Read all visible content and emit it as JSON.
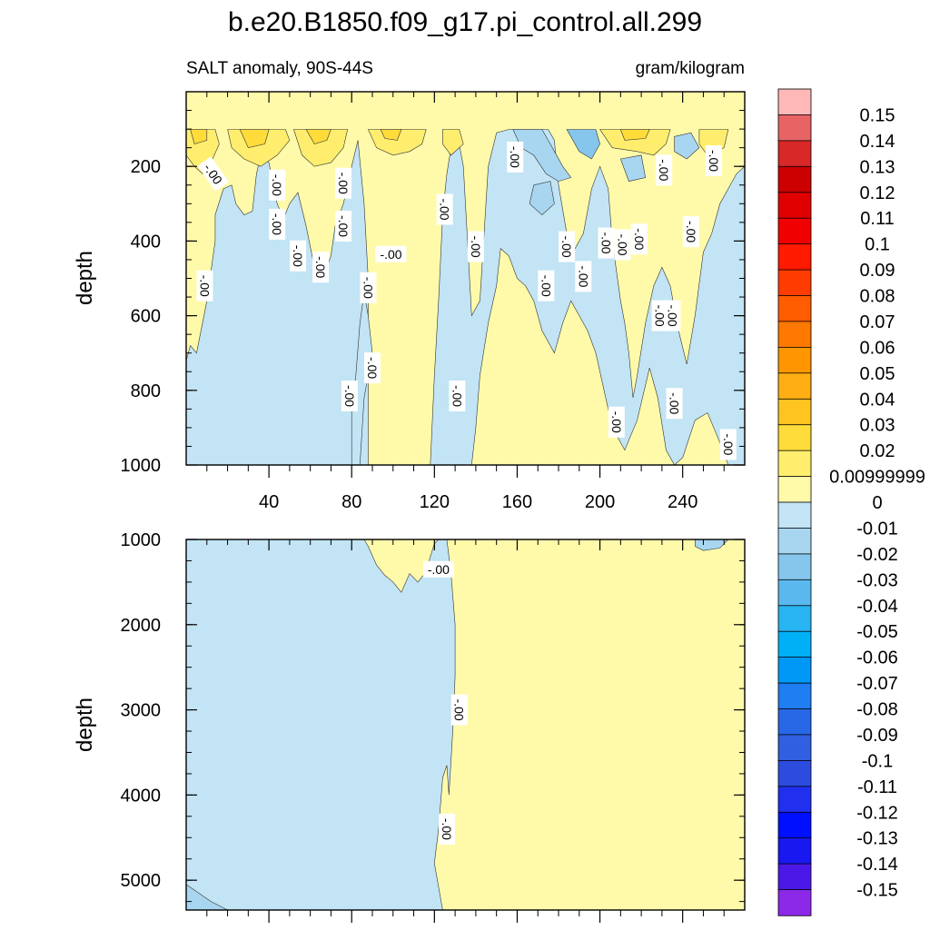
{
  "chart_data": {
    "type": "contour",
    "title": "b.e20.B1850.f09_g17.pi_control.all.299",
    "subtitle_left": "SALT anomaly, 90S-44S",
    "subtitle_right": "gram/kilogram",
    "x_ticks": [
      "40",
      "80",
      "120",
      "160",
      "200",
      "240"
    ],
    "x_tick_values": [
      40,
      80,
      120,
      160,
      200,
      240
    ],
    "xlim": [
      0,
      270
    ],
    "panels": [
      {
        "name": "upper",
        "ylabel": "depth",
        "ylim": [
          0,
          1000
        ],
        "y_ticks": [
          "200",
          "400",
          "600",
          "800",
          "1000"
        ],
        "y_tick_values": [
          200,
          400,
          600,
          800,
          1000
        ]
      },
      {
        "name": "lower",
        "ylabel": "depth",
        "ylim": [
          1000,
          5350
        ],
        "y_ticks": [
          "1000",
          "2000",
          "3000",
          "4000",
          "5000"
        ],
        "y_tick_values": [
          1000,
          2000,
          3000,
          4000,
          5000
        ]
      }
    ],
    "contour_labels_upper": [
      {
        "text": "-.00",
        "x": 13,
        "y": 220,
        "rot": 55
      },
      {
        "text": "-.00",
        "x": 9,
        "y": 520,
        "rot": 90
      },
      {
        "text": "-.00",
        "x": 44,
        "y": 355,
        "rot": 90
      },
      {
        "text": "-.00",
        "x": 44,
        "y": 250,
        "rot": 90
      },
      {
        "text": "-.00",
        "x": 54,
        "y": 440,
        "rot": 90
      },
      {
        "text": "-.00",
        "x": 65,
        "y": 470,
        "rot": 90
      },
      {
        "text": "-.00",
        "x": 76,
        "y": 360,
        "rot": 90
      },
      {
        "text": "-.00",
        "x": 76,
        "y": 245,
        "rot": 90
      },
      {
        "text": "-.00",
        "x": 88,
        "y": 525,
        "rot": 90
      },
      {
        "text": "-.00",
        "x": 90,
        "y": 740,
        "rot": 90
      },
      {
        "text": "-.00",
        "x": 79,
        "y": 815,
        "rot": 90
      },
      {
        "text": "-.00",
        "x": 99,
        "y": 435,
        "rot": 0
      },
      {
        "text": "-.00",
        "x": 131,
        "y": 815,
        "rot": 90
      },
      {
        "text": "-.00",
        "x": 125,
        "y": 315,
        "rot": 90
      },
      {
        "text": "-.00",
        "x": 140,
        "y": 415,
        "rot": 90
      },
      {
        "text": "-.00",
        "x": 159,
        "y": 175,
        "rot": 90
      },
      {
        "text": "-.00",
        "x": 174,
        "y": 520,
        "rot": 90
      },
      {
        "text": "-.00",
        "x": 184,
        "y": 415,
        "rot": 90
      },
      {
        "text": "-.00",
        "x": 192,
        "y": 495,
        "rot": 90
      },
      {
        "text": "-.00",
        "x": 203,
        "y": 405,
        "rot": 90
      },
      {
        "text": "-.00",
        "x": 211,
        "y": 410,
        "rot": 90
      },
      {
        "text": "-.00",
        "x": 219,
        "y": 395,
        "rot": 90
      },
      {
        "text": "-.00",
        "x": 231,
        "y": 210,
        "rot": 90
      },
      {
        "text": "-.00",
        "x": 229,
        "y": 600,
        "rot": 90
      },
      {
        "text": "-.00",
        "x": 235,
        "y": 600,
        "rot": 90
      },
      {
        "text": "-.00",
        "x": 244,
        "y": 375,
        "rot": 90
      },
      {
        "text": "-.00",
        "x": 236,
        "y": 835,
        "rot": 90
      },
      {
        "text": "-.00",
        "x": 208,
        "y": 885,
        "rot": 90
      },
      {
        "text": "-.00",
        "x": 255,
        "y": 185,
        "rot": 90
      },
      {
        "text": "-.00",
        "x": 262,
        "y": 945,
        "rot": 90
      }
    ],
    "contour_labels_lower": [
      {
        "text": "-.00",
        "x": 122,
        "y": 1350,
        "rot": 0
      },
      {
        "text": "-.00",
        "x": 132,
        "y": 3000,
        "rot": 90
      },
      {
        "text": "-.00",
        "x": 126,
        "y": 4400,
        "rot": 90
      }
    ],
    "colorbar": {
      "levels": [
        {
          "label": "0.15",
          "color": "#f8b0b0"
        },
        {
          "label": "0.14",
          "color": "#e86464"
        },
        {
          "label": "0.13",
          "color": "#d82828"
        },
        {
          "label": "0.12",
          "color": "#cc0000"
        },
        {
          "label": "0.11",
          "color": "#e00000"
        },
        {
          "label": "0.1",
          "color": "#f00000"
        },
        {
          "label": "0.09",
          "color": "#ff1a00"
        },
        {
          "label": "0.08",
          "color": "#ff3c00"
        },
        {
          "label": "0.07",
          "color": "#ff5c00"
        },
        {
          "label": "0.06",
          "color": "#ff7800"
        },
        {
          "label": "0.05",
          "color": "#ff9600"
        },
        {
          "label": "0.04",
          "color": "#ffae14"
        },
        {
          "label": "0.03",
          "color": "#ffc420"
        },
        {
          "label": "0.02",
          "color": "#ffdc3a"
        },
        {
          "label": "0.00999999",
          "color": "#ffee6e"
        },
        {
          "label": "0",
          "color": "#fffaaa"
        },
        {
          "label": "-0.01",
          "color": "#c2e4f4"
        },
        {
          "label": "-0.02",
          "color": "#a8d6f0"
        },
        {
          "label": "-0.03",
          "color": "#86c6ec"
        },
        {
          "label": "-0.04",
          "color": "#5ab8ee"
        },
        {
          "label": "-0.05",
          "color": "#28b4f2"
        },
        {
          "label": "-0.06",
          "color": "#00b0f6"
        },
        {
          "label": "-0.07",
          "color": "#0098f6"
        },
        {
          "label": "-0.08",
          "color": "#1e7ef2"
        },
        {
          "label": "-0.09",
          "color": "#2868e6"
        },
        {
          "label": "-0.1",
          "color": "#3060e0"
        },
        {
          "label": "-0.11",
          "color": "#2c4ce0"
        },
        {
          "label": "-0.12",
          "color": "#2030ee"
        },
        {
          "label": "-0.13",
          "color": "#0010ff"
        },
        {
          "label": "-0.14",
          "color": "#1818f0"
        },
        {
          "label": "-0.15",
          "color": "#4c18e8"
        }
      ],
      "extra_top_color": "#ffb8b8",
      "extra_bottom_color": "#8c28e8"
    },
    "colors": {
      "positive_fill": "#fffaaa",
      "negative_fill": "#c2e4f4",
      "positive_strong": "#ffee6e",
      "positive_stronger": "#ffdc3a",
      "negative_strong": "#a8d6f0",
      "negative_stronger": "#86c6ec"
    }
  }
}
